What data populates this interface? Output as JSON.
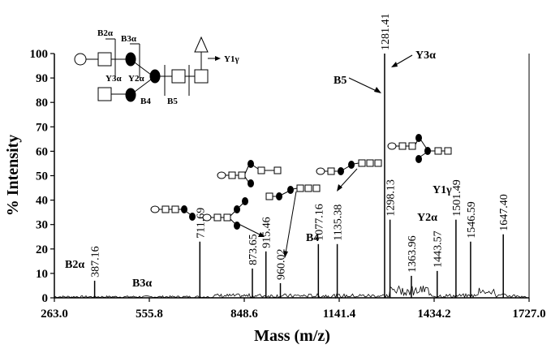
{
  "chart_data": {
    "type": "line",
    "xlabel": "Mass (m/z)",
    "ylabel": "% Intensity",
    "xlim": [
      263.0,
      1727.0
    ],
    "ylim": [
      0,
      100
    ],
    "x_ticks": [
      "263.0",
      "555.8",
      "848.6",
      "1141.4",
      "1434.2",
      "1727.0"
    ],
    "y_ticks": [
      "0",
      "10",
      "20",
      "30",
      "40",
      "50",
      "60",
      "70",
      "80",
      "90",
      "100"
    ],
    "peaks": [
      {
        "mz": 387.16,
        "intensity": 7,
        "label": "387.16"
      },
      {
        "mz": 711.69,
        "intensity": 23,
        "label": "711.69"
      },
      {
        "mz": 873.65,
        "intensity": 12,
        "label": "873.65"
      },
      {
        "mz": 915.46,
        "intensity": 19,
        "label": "915.46"
      },
      {
        "mz": 960.02,
        "intensity": 6,
        "label": "960.02"
      },
      {
        "mz": 1077.16,
        "intensity": 22,
        "label": "1077.16"
      },
      {
        "mz": 1135.38,
        "intensity": 22,
        "label": "1135.38"
      },
      {
        "mz": 1281.41,
        "intensity": 100,
        "label": "1281.41"
      },
      {
        "mz": 1298.13,
        "intensity": 32,
        "label": "1298.13"
      },
      {
        "mz": 1363.96,
        "intensity": 9,
        "label": "1363.96"
      },
      {
        "mz": 1443.57,
        "intensity": 11,
        "label": "1443.57"
      },
      {
        "mz": 1501.49,
        "intensity": 32,
        "label": "1501.49"
      },
      {
        "mz": 1546.59,
        "intensity": 23,
        "label": "1546.59"
      },
      {
        "mz": 1647.4,
        "intensity": 26,
        "label": "1647.40"
      }
    ],
    "ion_labels": [
      "B2α",
      "B3α",
      "B4",
      "B5",
      "Y3α",
      "Y1γ",
      "Y2α"
    ],
    "structure_labels": [
      "B2α",
      "B3α",
      "Y3α",
      "Y2α",
      "B4",
      "B5",
      "Y1γ"
    ]
  }
}
